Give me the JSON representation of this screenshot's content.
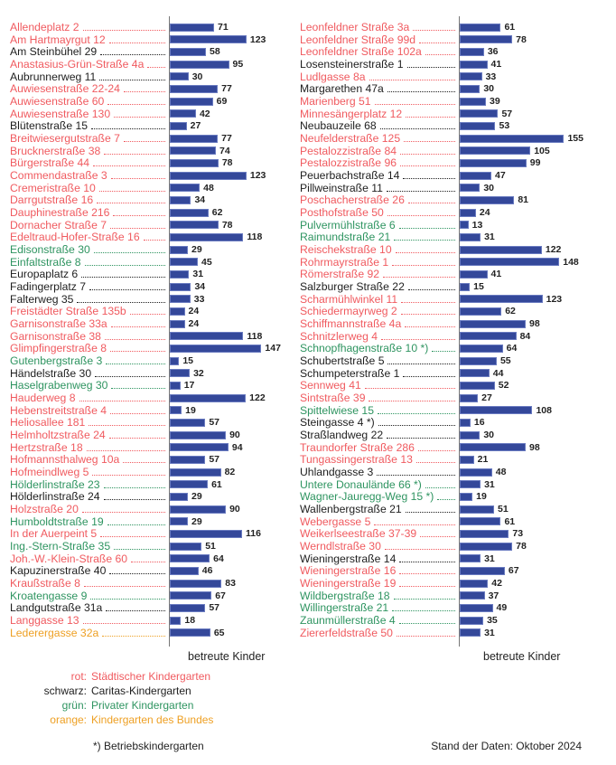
{
  "colors": {
    "rot": "#f05a5f",
    "schwarz": "#1e1e1e",
    "gruen": "#2e9460",
    "orange": "#eea024",
    "bar": "#34489a"
  },
  "chart_data": {
    "type": "bar",
    "orientation": "horizontal",
    "xlabel": "betreute Kinder",
    "panels": [
      {
        "items": [
          {
            "name": "Allendeplatz 2",
            "value": 71,
            "type": "rot"
          },
          {
            "name": "Am Hartmayrgut 12",
            "value": 123,
            "type": "rot"
          },
          {
            "name": "Am Steinbühel 29",
            "value": 58,
            "type": "schwarz"
          },
          {
            "name": "Anastasius-Grün-Straße 4a",
            "value": 95,
            "type": "rot"
          },
          {
            "name": "Aubrunnerweg 11",
            "value": 30,
            "type": "schwarz"
          },
          {
            "name": "Auwiesenstraße 22-24",
            "value": 77,
            "type": "rot"
          },
          {
            "name": "Auwiesenstraße 60",
            "value": 69,
            "type": "rot"
          },
          {
            "name": "Auwiesenstraße 130",
            "value": 42,
            "type": "rot"
          },
          {
            "name": "Blütenstraße 15",
            "value": 27,
            "type": "schwarz"
          },
          {
            "name": "Breitwiesergutstraße 7",
            "value": 77,
            "type": "rot"
          },
          {
            "name": "Brucknerstraße 38",
            "value": 74,
            "type": "rot"
          },
          {
            "name": "Bürgerstraße 44",
            "value": 78,
            "type": "rot"
          },
          {
            "name": "Commendastraße 3",
            "value": 123,
            "type": "rot"
          },
          {
            "name": "Cremeristraße 10",
            "value": 48,
            "type": "rot"
          },
          {
            "name": "Darrgutstraße 16",
            "value": 34,
            "type": "rot"
          },
          {
            "name": "Dauphinestraße 216",
            "value": 62,
            "type": "rot"
          },
          {
            "name": "Dornacher Straße 7",
            "value": 78,
            "type": "rot"
          },
          {
            "name": "Edeltraud-Hofer-Straße 16",
            "value": 118,
            "type": "rot"
          },
          {
            "name": "Edisonstraße 30",
            "value": 29,
            "type": "gruen"
          },
          {
            "name": "Einfaltstraße 8",
            "value": 45,
            "type": "gruen"
          },
          {
            "name": "Europaplatz 6",
            "value": 31,
            "type": "schwarz"
          },
          {
            "name": "Fadingerplatz 7",
            "value": 34,
            "type": "schwarz"
          },
          {
            "name": "Falterweg 35",
            "value": 33,
            "type": "schwarz"
          },
          {
            "name": "Freistädter Straße 135b",
            "value": 24,
            "type": "rot"
          },
          {
            "name": "Garnisonstraße 33a",
            "value": 24,
            "type": "rot"
          },
          {
            "name": "Garnisonstraße 38",
            "value": 118,
            "type": "rot"
          },
          {
            "name": "Glimpfingerstraße 8",
            "value": 147,
            "type": "rot"
          },
          {
            "name": "Gutenbergstraße 3",
            "value": 15,
            "type": "gruen"
          },
          {
            "name": "Händelstraße 30",
            "value": 32,
            "type": "schwarz"
          },
          {
            "name": "Haselgrabenweg 30",
            "value": 17,
            "type": "gruen"
          },
          {
            "name": "Hauderweg 8",
            "value": 122,
            "type": "rot"
          },
          {
            "name": "Hebenstreitstraße 4",
            "value": 19,
            "type": "rot"
          },
          {
            "name": "Heliosallee 181",
            "value": 57,
            "type": "rot"
          },
          {
            "name": "Helmholtzstraße 24",
            "value": 90,
            "type": "rot"
          },
          {
            "name": "Hertzstraße 18",
            "value": 94,
            "type": "rot"
          },
          {
            "name": "Hofmannsthalweg 10a",
            "value": 57,
            "type": "rot"
          },
          {
            "name": "Hofmeindlweg 5",
            "value": 82,
            "type": "rot"
          },
          {
            "name": "Hölderlinstraße 23",
            "value": 61,
            "type": "gruen"
          },
          {
            "name": "Hölderlinstraße 24",
            "value": 29,
            "type": "schwarz"
          },
          {
            "name": "Holzstraße 20",
            "value": 90,
            "type": "rot"
          },
          {
            "name": "Humboldtstraße 19",
            "value": 29,
            "type": "gruen"
          },
          {
            "name": "In der Auerpeint 5",
            "value": 116,
            "type": "rot"
          },
          {
            "name": "Ing.-Stern-Straße 35",
            "value": 51,
            "type": "gruen"
          },
          {
            "name": "Joh.-W.-Klein-Straße 60",
            "value": 64,
            "type": "rot"
          },
          {
            "name": "Kapuzinerstraße 40",
            "value": 46,
            "type": "schwarz"
          },
          {
            "name": "Kraußstraße 8",
            "value": 83,
            "type": "rot"
          },
          {
            "name": "Kroatengasse 9",
            "value": 67,
            "type": "gruen"
          },
          {
            "name": "Landgutstraße 31a",
            "value": 57,
            "type": "schwarz"
          },
          {
            "name": "Langgasse 13",
            "value": 18,
            "type": "rot"
          },
          {
            "name": "Lederergasse 32a",
            "value": 65,
            "type": "orange"
          }
        ]
      },
      {
        "items": [
          {
            "name": "Leonfeldner Straße 3a",
            "value": 61,
            "type": "rot"
          },
          {
            "name": "Leonfeldner Straße 99d",
            "value": 78,
            "type": "rot"
          },
          {
            "name": "Leonfeldner Straße 102a",
            "value": 36,
            "type": "rot"
          },
          {
            "name": "Losensteinerstraße 1",
            "value": 41,
            "type": "schwarz"
          },
          {
            "name": "Ludlgasse 8a",
            "value": 33,
            "type": "rot"
          },
          {
            "name": "Margarethen 47a",
            "value": 30,
            "type": "schwarz"
          },
          {
            "name": "Marienberg 51",
            "value": 39,
            "type": "rot"
          },
          {
            "name": "Minnesängerplatz 12",
            "value": 57,
            "type": "rot"
          },
          {
            "name": "Neubauzeile 68",
            "value": 53,
            "type": "schwarz"
          },
          {
            "name": "Neufelderstraße 125",
            "value": 155,
            "type": "rot"
          },
          {
            "name": "Pestalozzistraße 84",
            "value": 105,
            "type": "rot"
          },
          {
            "name": "Pestalozzistraße 96",
            "value": 99,
            "type": "rot"
          },
          {
            "name": "Peuerbachstraße 14",
            "value": 47,
            "type": "schwarz"
          },
          {
            "name": "Pillweinstraße 11",
            "value": 30,
            "type": "schwarz"
          },
          {
            "name": "Poschacherstraße 26",
            "value": 81,
            "type": "rot"
          },
          {
            "name": "Posthofstraße 50",
            "value": 24,
            "type": "rot"
          },
          {
            "name": "Pulvermühlstraße 6",
            "value": 13,
            "type": "gruen"
          },
          {
            "name": "Raimundstraße 21",
            "value": 31,
            "type": "gruen"
          },
          {
            "name": "Reischekstraße 10",
            "value": 122,
            "type": "rot"
          },
          {
            "name": "Rohrmayrstraße 1",
            "value": 148,
            "type": "rot"
          },
          {
            "name": "Römerstraße 92",
            "value": 41,
            "type": "rot"
          },
          {
            "name": "Salzburger Straße 22",
            "value": 15,
            "type": "schwarz"
          },
          {
            "name": "Scharmühlwinkel 11",
            "value": 123,
            "type": "rot"
          },
          {
            "name": "Schiedermayrweg 2",
            "value": 62,
            "type": "rot"
          },
          {
            "name": "Schiffmannstraße 4a",
            "value": 98,
            "type": "rot"
          },
          {
            "name": "Schnitzlerweg 4",
            "value": 84,
            "type": "rot"
          },
          {
            "name": "Schnopfhagenstraße 10 *)",
            "value": 64,
            "type": "gruen"
          },
          {
            "name": "Schubertstraße 5",
            "value": 55,
            "type": "schwarz"
          },
          {
            "name": "Schumpeterstraße 1",
            "value": 44,
            "type": "schwarz"
          },
          {
            "name": "Sennweg 41",
            "value": 52,
            "type": "rot"
          },
          {
            "name": "Sintstraße 39",
            "value": 27,
            "type": "rot"
          },
          {
            "name": "Spittelwiese 15",
            "value": 108,
            "type": "gruen"
          },
          {
            "name": "Steingasse 4 *)",
            "value": 16,
            "type": "schwarz"
          },
          {
            "name": "Straßlandweg 22",
            "value": 30,
            "type": "schwarz"
          },
          {
            "name": "Traundorfer Straße 286",
            "value": 98,
            "type": "rot"
          },
          {
            "name": "Tungassingerstraße 13",
            "value": 21,
            "type": "rot"
          },
          {
            "name": "Uhlandgasse 3",
            "value": 48,
            "type": "schwarz"
          },
          {
            "name": "Untere Donaulände 66 *)",
            "value": 31,
            "type": "gruen"
          },
          {
            "name": "Wagner-Jauregg-Weg 15 *)",
            "value": 19,
            "type": "gruen"
          },
          {
            "name": "Wallenbergstraße 21",
            "value": 51,
            "type": "schwarz"
          },
          {
            "name": "Webergasse 5",
            "value": 61,
            "type": "rot"
          },
          {
            "name": "Weikerlseestraße 37-39",
            "value": 73,
            "type": "rot"
          },
          {
            "name": "Werndlstraße 30",
            "value": 78,
            "type": "rot"
          },
          {
            "name": "Wieningerstraße 14",
            "value": 31,
            "type": "schwarz"
          },
          {
            "name": "Wieningerstraße 16",
            "value": 67,
            "type": "rot"
          },
          {
            "name": "Wieningerstraße 19",
            "value": 42,
            "type": "rot"
          },
          {
            "name": "Wildbergstraße 18",
            "value": 37,
            "type": "gruen"
          },
          {
            "name": "Willingerstraße 21",
            "value": 49,
            "type": "gruen"
          },
          {
            "name": "Zaunmüllerstraße 4",
            "value": 35,
            "type": "gruen"
          },
          {
            "name": "Ziererfeldstraße 50",
            "value": 31,
            "type": "rot"
          }
        ]
      }
    ]
  },
  "legend": [
    {
      "key": "rot:",
      "label": "Städtischer Kindergarten",
      "type": "rot"
    },
    {
      "key": "schwarz:",
      "label": "Caritas-Kindergarten",
      "type": "schwarz"
    },
    {
      "key": "grün:",
      "label": "Privater Kindergarten",
      "type": "gruen"
    },
    {
      "key": "orange:",
      "label": "Kindergarten des Bundes",
      "type": "orange"
    }
  ],
  "footnote": "*) Betriebskindergarten",
  "data_date": "Stand der Daten: Oktober 2024"
}
